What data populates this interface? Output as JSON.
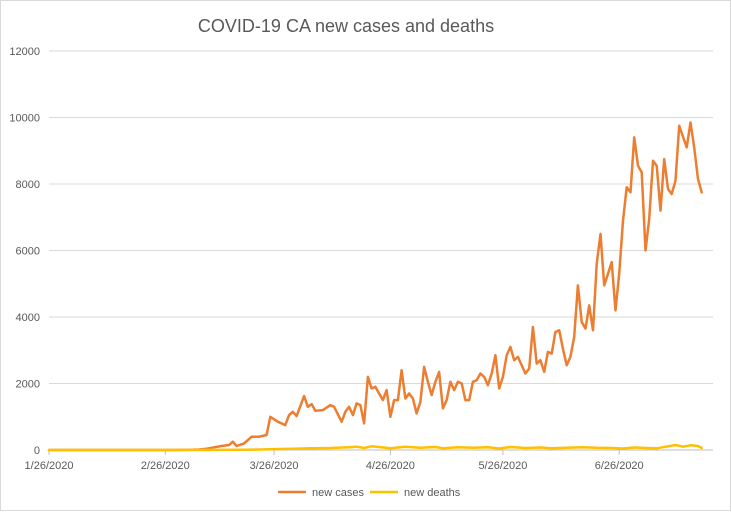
{
  "chart_data": {
    "type": "line",
    "title": "COVID-19 CA new cases and deaths",
    "xlabel": "",
    "ylabel": "",
    "ylim": [
      0,
      12000
    ],
    "y_ticks": [
      0,
      2000,
      4000,
      6000,
      8000,
      10000,
      12000
    ],
    "x_range": [
      "2020-01-26",
      "2020-07-21"
    ],
    "x_ticks": [
      "1/26/2020",
      "2/26/2020",
      "3/26/2020",
      "4/26/2020",
      "5/26/2020",
      "6/26/2020"
    ],
    "grid": true,
    "legend_position": "bottom",
    "series": [
      {
        "name": "new cases",
        "color": "#ED7D31",
        "points": [
          [
            "2020-01-26",
            0
          ],
          [
            "2020-02-03",
            0
          ],
          [
            "2020-02-10",
            0
          ],
          [
            "2020-02-20",
            0
          ],
          [
            "2020-02-28",
            0
          ],
          [
            "2020-03-04",
            5
          ],
          [
            "2020-03-06",
            15
          ],
          [
            "2020-03-08",
            40
          ],
          [
            "2020-03-10",
            80
          ],
          [
            "2020-03-12",
            120
          ],
          [
            "2020-03-14",
            150
          ],
          [
            "2020-03-15",
            250
          ],
          [
            "2020-03-16",
            120
          ],
          [
            "2020-03-18",
            200
          ],
          [
            "2020-03-20",
            400
          ],
          [
            "2020-03-22",
            400
          ],
          [
            "2020-03-24",
            450
          ],
          [
            "2020-03-25",
            1000
          ],
          [
            "2020-03-27",
            850
          ],
          [
            "2020-03-29",
            750
          ],
          [
            "2020-03-30",
            1050
          ],
          [
            "2020-03-31",
            1150
          ],
          [
            "2020-04-01",
            1020
          ],
          [
            "2020-04-03",
            1620
          ],
          [
            "2020-04-04",
            1300
          ],
          [
            "2020-04-05",
            1380
          ],
          [
            "2020-04-06",
            1180
          ],
          [
            "2020-04-08",
            1200
          ],
          [
            "2020-04-10",
            1350
          ],
          [
            "2020-04-11",
            1300
          ],
          [
            "2020-04-13",
            850
          ],
          [
            "2020-04-14",
            1150
          ],
          [
            "2020-04-15",
            1300
          ],
          [
            "2020-04-16",
            1050
          ],
          [
            "2020-04-17",
            1400
          ],
          [
            "2020-04-18",
            1350
          ],
          [
            "2020-04-19",
            800
          ],
          [
            "2020-04-20",
            2200
          ],
          [
            "2020-04-21",
            1850
          ],
          [
            "2020-04-22",
            1900
          ],
          [
            "2020-04-23",
            1700
          ],
          [
            "2020-04-24",
            1500
          ],
          [
            "2020-04-25",
            1800
          ],
          [
            "2020-04-26",
            1000
          ],
          [
            "2020-04-27",
            1500
          ],
          [
            "2020-04-28",
            1500
          ],
          [
            "2020-04-29",
            2400
          ],
          [
            "2020-04-30",
            1550
          ],
          [
            "2020-05-01",
            1700
          ],
          [
            "2020-05-02",
            1550
          ],
          [
            "2020-05-03",
            1100
          ],
          [
            "2020-05-04",
            1450
          ],
          [
            "2020-05-05",
            2500
          ],
          [
            "2020-05-06",
            2050
          ],
          [
            "2020-05-07",
            1650
          ],
          [
            "2020-05-08",
            2050
          ],
          [
            "2020-05-09",
            2350
          ],
          [
            "2020-05-10",
            1250
          ],
          [
            "2020-05-11",
            1500
          ],
          [
            "2020-05-12",
            2050
          ],
          [
            "2020-05-13",
            1800
          ],
          [
            "2020-05-14",
            2050
          ],
          [
            "2020-05-15",
            2000
          ],
          [
            "2020-05-16",
            1500
          ],
          [
            "2020-05-17",
            1500
          ],
          [
            "2020-05-18",
            2050
          ],
          [
            "2020-05-19",
            2100
          ],
          [
            "2020-05-20",
            2300
          ],
          [
            "2020-05-21",
            2200
          ],
          [
            "2020-05-22",
            1950
          ],
          [
            "2020-05-23",
            2300
          ],
          [
            "2020-05-24",
            2850
          ],
          [
            "2020-05-25",
            1850
          ],
          [
            "2020-05-26",
            2200
          ],
          [
            "2020-05-27",
            2850
          ],
          [
            "2020-05-28",
            3100
          ],
          [
            "2020-05-29",
            2700
          ],
          [
            "2020-05-30",
            2800
          ],
          [
            "2020-06-01",
            2300
          ],
          [
            "2020-06-02",
            2450
          ],
          [
            "2020-06-03",
            3700
          ],
          [
            "2020-06-04",
            2600
          ],
          [
            "2020-06-05",
            2700
          ],
          [
            "2020-06-06",
            2350
          ],
          [
            "2020-06-07",
            2950
          ],
          [
            "2020-06-08",
            2900
          ],
          [
            "2020-06-09",
            3550
          ],
          [
            "2020-06-10",
            3600
          ],
          [
            "2020-06-11",
            3050
          ],
          [
            "2020-06-12",
            2550
          ],
          [
            "2020-06-13",
            2800
          ],
          [
            "2020-06-14",
            3400
          ],
          [
            "2020-06-15",
            4950
          ],
          [
            "2020-06-16",
            3850
          ],
          [
            "2020-06-17",
            3650
          ],
          [
            "2020-06-18",
            4350
          ],
          [
            "2020-06-19",
            3600
          ],
          [
            "2020-06-20",
            5600
          ],
          [
            "2020-06-21",
            6500
          ],
          [
            "2020-06-22",
            4950
          ],
          [
            "2020-06-23",
            5300
          ],
          [
            "2020-06-24",
            5650
          ],
          [
            "2020-06-25",
            4200
          ],
          [
            "2020-06-26",
            5300
          ],
          [
            "2020-06-27",
            6900
          ],
          [
            "2020-06-28",
            7900
          ],
          [
            "2020-06-29",
            7750
          ],
          [
            "2020-06-30",
            9400
          ],
          [
            "2020-07-01",
            8550
          ],
          [
            "2020-07-02",
            8350
          ],
          [
            "2020-07-03",
            6000
          ],
          [
            "2020-07-04",
            6950
          ],
          [
            "2020-07-05",
            8700
          ],
          [
            "2020-07-06",
            8550
          ],
          [
            "2020-07-07",
            7200
          ],
          [
            "2020-07-08",
            8750
          ],
          [
            "2020-07-09",
            7850
          ],
          [
            "2020-07-10",
            7700
          ],
          [
            "2020-07-11",
            8100
          ],
          [
            "2020-07-12",
            9750
          ],
          [
            "2020-07-14",
            9100
          ],
          [
            "2020-07-15",
            9850
          ],
          [
            "2020-07-16",
            9100
          ],
          [
            "2020-07-17",
            8150
          ],
          [
            "2020-07-18",
            7750
          ]
        ]
      },
      {
        "name": "new deaths",
        "color": "#FFC000",
        "points": [
          [
            "2020-01-26",
            0
          ],
          [
            "2020-02-28",
            0
          ],
          [
            "2020-03-10",
            2
          ],
          [
            "2020-03-18",
            5
          ],
          [
            "2020-03-25",
            20
          ],
          [
            "2020-03-31",
            40
          ],
          [
            "2020-04-05",
            55
          ],
          [
            "2020-04-10",
            60
          ],
          [
            "2020-04-15",
            80
          ],
          [
            "2020-04-17",
            100
          ],
          [
            "2020-04-19",
            60
          ],
          [
            "2020-04-21",
            110
          ],
          [
            "2020-04-23",
            90
          ],
          [
            "2020-04-26",
            50
          ],
          [
            "2020-04-30",
            95
          ],
          [
            "2020-05-04",
            70
          ],
          [
            "2020-05-08",
            90
          ],
          [
            "2020-05-10",
            50
          ],
          [
            "2020-05-14",
            85
          ],
          [
            "2020-05-18",
            65
          ],
          [
            "2020-05-22",
            80
          ],
          [
            "2020-05-25",
            45
          ],
          [
            "2020-05-28",
            90
          ],
          [
            "2020-06-01",
            60
          ],
          [
            "2020-06-05",
            75
          ],
          [
            "2020-06-08",
            50
          ],
          [
            "2020-06-12",
            70
          ],
          [
            "2020-06-16",
            85
          ],
          [
            "2020-06-20",
            65
          ],
          [
            "2020-06-24",
            60
          ],
          [
            "2020-06-27",
            45
          ],
          [
            "2020-06-30",
            75
          ],
          [
            "2020-07-03",
            60
          ],
          [
            "2020-07-06",
            50
          ],
          [
            "2020-07-09",
            110
          ],
          [
            "2020-07-11",
            150
          ],
          [
            "2020-07-13",
            100
          ],
          [
            "2020-07-15",
            140
          ],
          [
            "2020-07-17",
            120
          ],
          [
            "2020-07-18",
            60
          ]
        ]
      }
    ]
  }
}
